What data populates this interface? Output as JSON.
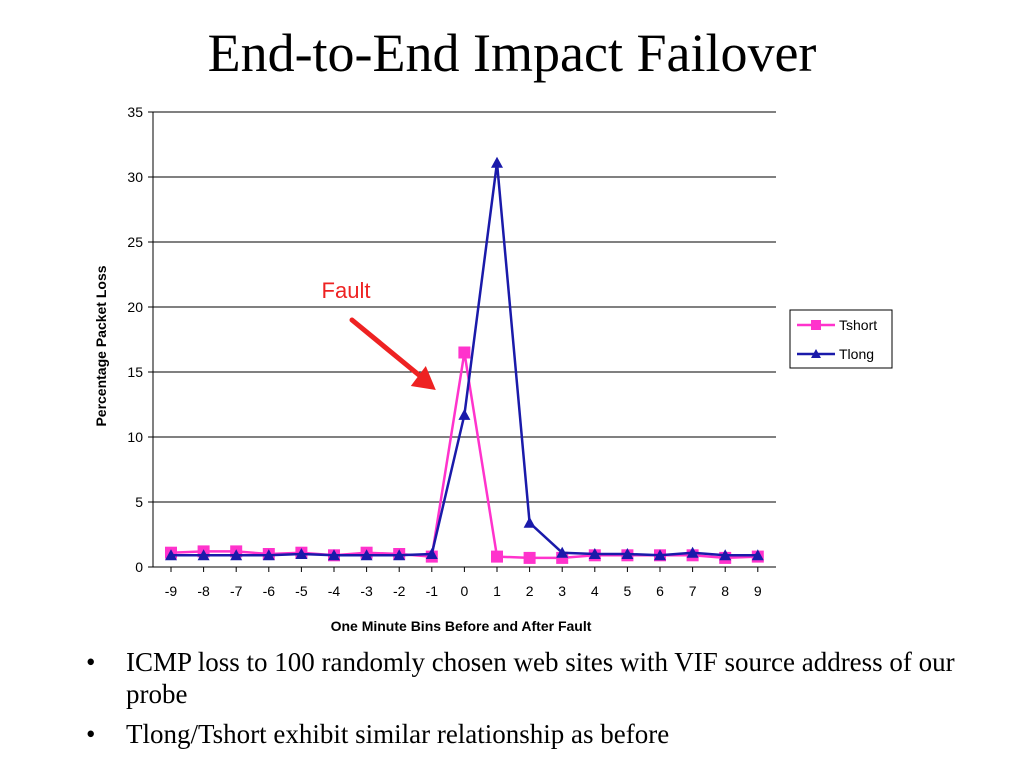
{
  "slide": {
    "title": "End-to-End Impact Failover",
    "bullets": [
      "ICMP loss to 100 randomly chosen web sites with VIF source address of our probe",
      "Tlong/Tshort exhibit similar relationship as before"
    ],
    "bullet_glyph": "•"
  },
  "chart_data": {
    "type": "line",
    "title": "",
    "xlabel": "One Minute Bins Before and After Fault",
    "ylabel": "Percentage Packet Loss",
    "x": [
      -9,
      -8,
      -7,
      -6,
      -5,
      -4,
      -3,
      -2,
      -1,
      0,
      1,
      2,
      3,
      4,
      5,
      6,
      7,
      8,
      9
    ],
    "ylim": [
      0,
      35
    ],
    "yticks": [
      0,
      5,
      10,
      15,
      20,
      25,
      30,
      35
    ],
    "grid": "horizontal",
    "legend_position": "right",
    "series": [
      {
        "name": "Tshort",
        "color": "#ff33cc",
        "marker": "square",
        "values": [
          1.1,
          1.2,
          1.2,
          1.0,
          1.1,
          0.9,
          1.1,
          1.0,
          0.8,
          16.5,
          0.8,
          0.7,
          0.7,
          0.9,
          0.9,
          0.9,
          0.9,
          0.7,
          0.8
        ]
      },
      {
        "name": "Tlong",
        "color": "#1a1aaa",
        "marker": "triangle",
        "values": [
          0.9,
          0.9,
          0.9,
          0.9,
          1.0,
          0.9,
          0.9,
          0.9,
          1.0,
          11.7,
          31.1,
          3.4,
          1.1,
          1.0,
          1.0,
          0.9,
          1.1,
          0.9,
          0.9
        ]
      }
    ],
    "annotations": [
      {
        "text": "Fault",
        "color": "#ee2222",
        "points_to_x": -0.9,
        "points_to_y": 13.5
      }
    ]
  }
}
